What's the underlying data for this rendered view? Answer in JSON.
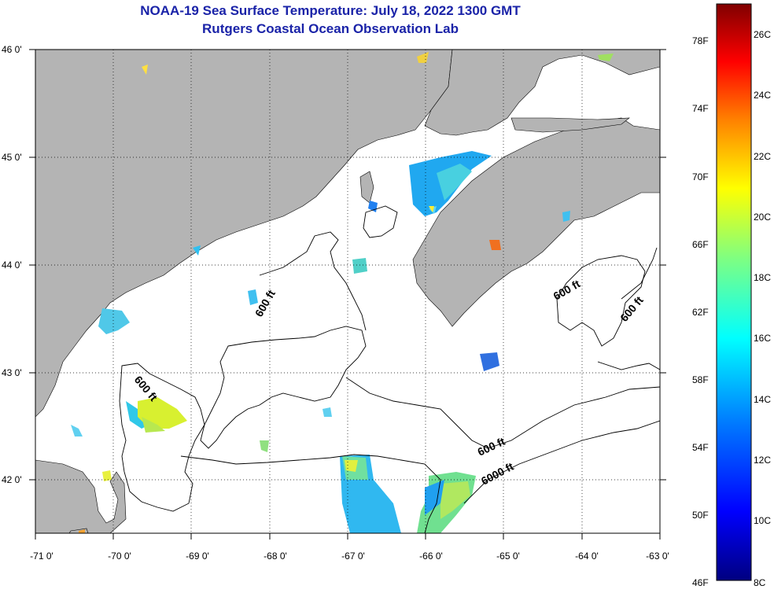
{
  "title": {
    "line1": "NOAA-19 Sea Surface Temperature:  July 18, 2022 1300 GMT",
    "line2": "Rutgers Coastal Ocean Observation Lab"
  },
  "map": {
    "lon_ticks": [
      "-71 0'",
      "-70 0'",
      "-69 0'",
      "-68 0'",
      "-67 0'",
      "-66 0'",
      "-65 0'",
      "-64 0'",
      "-63 0'"
    ],
    "lat_ticks": [
      "46 0'",
      "45 0'",
      "44 0'",
      "43 0'",
      "42 0'"
    ],
    "lon_range": [
      -71,
      -63
    ],
    "lat_range": [
      41.5,
      46
    ],
    "land_color": "#b4b4b4",
    "ocean_color": "#ffffff",
    "depth_contour_labels": [
      "600 ft",
      "600 ft",
      "600 ft",
      "600 ft",
      "600 ft",
      "6000 ft"
    ]
  },
  "colorbar": {
    "fahrenheit": [
      "78F",
      "74F",
      "70F",
      "66F",
      "62F",
      "58F",
      "54F",
      "50F",
      "46F"
    ],
    "celsius": [
      "26C",
      "24C",
      "22C",
      "20C",
      "18C",
      "16C",
      "14C",
      "12C",
      "10C",
      "8C"
    ],
    "colors": [
      "#800000",
      "#ff0000",
      "#ff8000",
      "#ffff00",
      "#80ff80",
      "#00ffff",
      "#0080ff",
      "#0000ff",
      "#000080"
    ]
  }
}
